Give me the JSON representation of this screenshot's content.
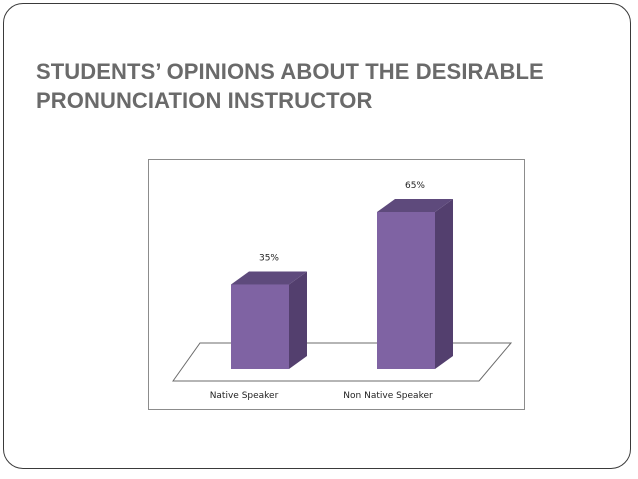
{
  "slide": {
    "title": "STUDENTS’ OPINIONS ABOUT THE DESIRABLE PRONUNCIATION INSTRUCTOR"
  },
  "chart_data": {
    "type": "bar",
    "style": "3d-column",
    "categories": [
      "Native Speaker",
      "Non Native Speaker"
    ],
    "values": [
      35,
      65
    ],
    "data_labels": [
      "35%",
      "65%"
    ],
    "unit": "%",
    "title": "",
    "xlabel": "",
    "ylabel": "",
    "ylim": [
      0,
      70
    ],
    "grid": false,
    "legend": "none",
    "colors": {
      "bar_front": "#7f63a3",
      "bar_side": "#533f6e",
      "bar_top": "#5e4a7c",
      "floor_stroke": "#6b6b6b"
    }
  }
}
